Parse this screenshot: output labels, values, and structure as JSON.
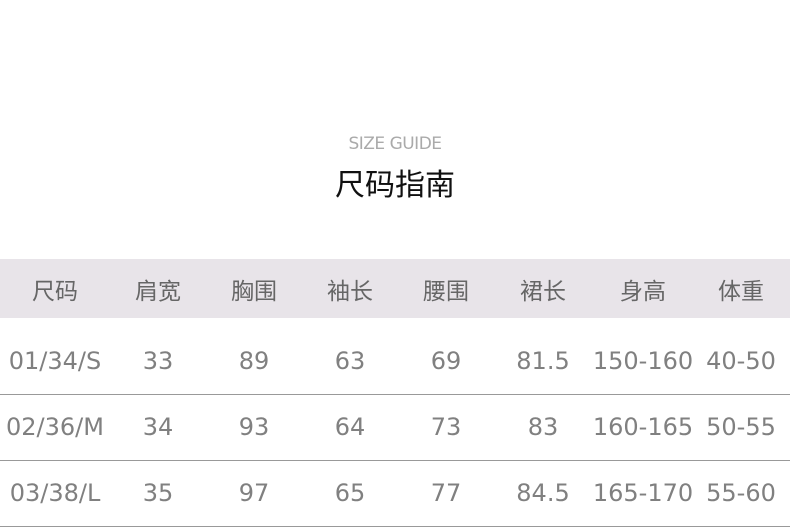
{
  "subtitle": "SIZE GUIDE",
  "title": "尺码指南",
  "headers": [
    "尺码",
    "肩宽",
    "胸围",
    "袖长",
    "腰围",
    "裙长",
    "身高",
    "体重"
  ],
  "rows": [
    [
      "01/34/S",
      "33",
      "89",
      "63",
      "69",
      "81.5",
      "150-160",
      "40-50"
    ],
    [
      "02/36/M",
      "34",
      "93",
      "64",
      "73",
      "83",
      "160-165",
      "50-55"
    ],
    [
      "03/38/L",
      "35",
      "97",
      "65",
      "77",
      "84.5",
      "165-170",
      "55-60"
    ]
  ],
  "colors": {
    "header_bg": "#e8e4e9",
    "header_text": "#666666",
    "cell_text": "#808080"
  }
}
